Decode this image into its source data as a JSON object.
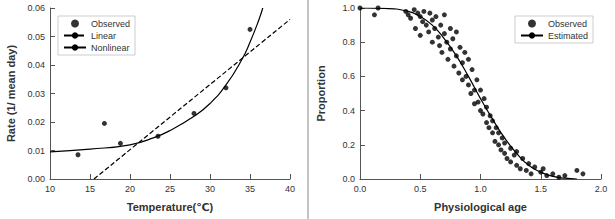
{
  "chart_data": [
    {
      "type": "scatter",
      "xlabel": "Temperature(℃)",
      "ylabel": "Rate (1/ mean day)",
      "xlim": [
        10,
        40
      ],
      "xticks": [
        10,
        15,
        20,
        25,
        30,
        35,
        40
      ],
      "ylim": [
        0,
        0.06
      ],
      "yticks": [
        {
          "value": 0,
          "label": "0.00"
        },
        {
          "value": 0.01,
          "label": "0.01"
        },
        {
          "value": 0.02,
          "label": "0.02"
        },
        {
          "value": 0.03,
          "label": "0.03"
        },
        {
          "value": 0.04,
          "label": "0.04"
        },
        {
          "value": 0.05,
          "label": "0.05"
        },
        {
          "value": 0.06,
          "label": "0.06"
        }
      ],
      "grid": false,
      "legend": "upper left",
      "series": [
        {
          "name": "Observed",
          "type": "scatter",
          "color": "#000000",
          "marker": "circle",
          "x": [
            13.5,
            16.8,
            18.8,
            23.5,
            28,
            32,
            35
          ],
          "values": [
            0.0085,
            0.0195,
            0.0125,
            0.015,
            0.023,
            0.032,
            0.0525
          ]
        },
        {
          "name": "Linear",
          "type": "line",
          "color": "#000000",
          "line_style": "dashed",
          "x": [
            15.5,
            40
          ],
          "values": [
            0,
            0.056
          ]
        },
        {
          "name": "Nonlinear",
          "type": "line",
          "color": "#000000",
          "line_style": "solid",
          "x": [
            10,
            15,
            20,
            23,
            25,
            28,
            30,
            32,
            34,
            35,
            36,
            36.6
          ],
          "values": [
            0.0095,
            0.0105,
            0.012,
            0.0145,
            0.017,
            0.022,
            0.0265,
            0.033,
            0.042,
            0.048,
            0.055,
            0.06
          ]
        }
      ]
    },
    {
      "type": "scatter",
      "xlabel": "Physiological age",
      "ylabel": "Proportion",
      "xlim": [
        0,
        2
      ],
      "xticks": [
        {
          "value": 0,
          "label": "0.0"
        },
        0.5,
        {
          "value": 1,
          "label": "1.0"
        },
        1.5,
        {
          "value": 2,
          "label": "2.0"
        }
      ],
      "ylim": [
        0,
        1
      ],
      "yticks": [
        {
          "value": 0,
          "label": "0.0"
        },
        0.2,
        0.4,
        0.6,
        0.8,
        {
          "value": 1,
          "label": "1.0"
        }
      ],
      "grid": false,
      "legend": "upper right",
      "series": [
        {
          "name": "Observed",
          "type": "scatter",
          "color": "#000000",
          "marker": "circle",
          "x": [
            0.0,
            0.12,
            0.15,
            0.38,
            0.4,
            0.42,
            0.45,
            0.46,
            0.48,
            0.5,
            0.5,
            0.52,
            0.53,
            0.55,
            0.57,
            0.58,
            0.6,
            0.6,
            0.62,
            0.63,
            0.65,
            0.66,
            0.67,
            0.68,
            0.7,
            0.7,
            0.72,
            0.73,
            0.75,
            0.75,
            0.77,
            0.78,
            0.8,
            0.8,
            0.82,
            0.83,
            0.85,
            0.85,
            0.87,
            0.88,
            0.9,
            0.9,
            0.92,
            0.93,
            0.95,
            0.95,
            0.97,
            0.98,
            1.0,
            1.0,
            1.02,
            1.03,
            1.05,
            1.05,
            1.07,
            1.08,
            1.1,
            1.1,
            1.12,
            1.13,
            1.15,
            1.15,
            1.17,
            1.18,
            1.2,
            1.2,
            1.22,
            1.25,
            1.25,
            1.28,
            1.3,
            1.3,
            1.33,
            1.35,
            1.38,
            1.4,
            1.42,
            1.45,
            1.5,
            1.52,
            1.55,
            1.6,
            1.65,
            1.7,
            1.8,
            1.85
          ],
          "values": [
            1.0,
            0.96,
            1.0,
            0.98,
            0.96,
            0.94,
            0.99,
            0.88,
            0.97,
            0.95,
            0.84,
            0.92,
            0.98,
            0.9,
            0.86,
            0.97,
            0.93,
            0.8,
            0.88,
            0.95,
            0.83,
            0.78,
            0.9,
            0.74,
            0.85,
            0.96,
            0.8,
            0.7,
            0.76,
            0.88,
            0.82,
            0.66,
            0.72,
            0.86,
            0.62,
            0.77,
            0.68,
            0.58,
            0.74,
            0.6,
            0.55,
            0.7,
            0.5,
            0.64,
            0.52,
            0.44,
            0.58,
            0.45,
            0.4,
            0.52,
            0.38,
            0.47,
            0.33,
            0.42,
            0.3,
            0.37,
            0.27,
            0.34,
            0.22,
            0.3,
            0.2,
            0.27,
            0.17,
            0.24,
            0.15,
            0.21,
            0.12,
            0.18,
            0.1,
            0.14,
            0.08,
            0.16,
            0.06,
            0.12,
            0.05,
            0.09,
            0.03,
            0.07,
            0.04,
            0.06,
            0.02,
            0.03,
            0.01,
            0.02,
            0.05,
            0.03
          ]
        },
        {
          "name": "Estimated",
          "type": "line",
          "color": "#000000",
          "line_style": "solid",
          "x": [
            0,
            0.2,
            0.4,
            0.5,
            0.6,
            0.7,
            0.8,
            0.9,
            1.0,
            1.1,
            1.2,
            1.3,
            1.4,
            1.5,
            1.6,
            1.7,
            1.8
          ],
          "values": [
            1,
            0.998,
            0.98,
            0.95,
            0.9,
            0.82,
            0.72,
            0.6,
            0.47,
            0.35,
            0.24,
            0.15,
            0.08,
            0.04,
            0.015,
            0.005,
            0
          ]
        }
      ]
    }
  ]
}
